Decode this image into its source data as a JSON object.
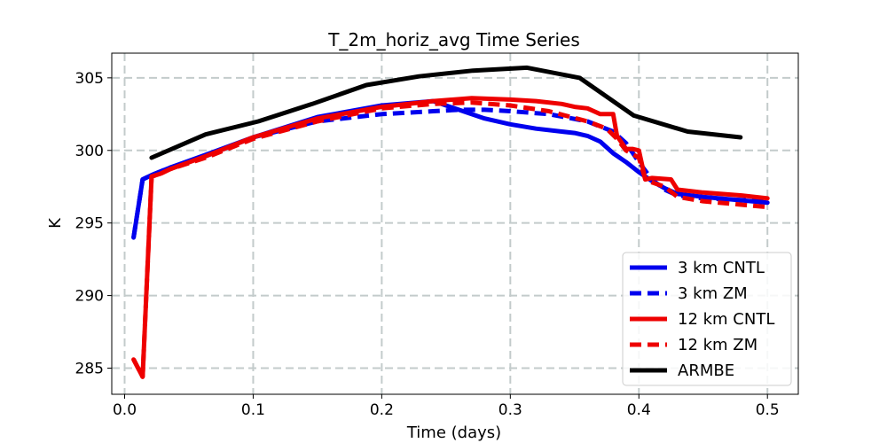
{
  "chart_data": {
    "type": "line",
    "title": "T_2m_horiz_avg Time Series",
    "xlabel": "Time (days)",
    "ylabel": "K",
    "xlim": [
      -0.01,
      0.524
    ],
    "ylim": [
      283.2,
      306.7
    ],
    "xticks": [
      0.0,
      0.1,
      0.2,
      0.3,
      0.4,
      0.5
    ],
    "xtick_labels": [
      "0.0",
      "0.1",
      "0.2",
      "0.3",
      "0.4",
      "0.5"
    ],
    "yticks": [
      285,
      290,
      295,
      300,
      305
    ],
    "ytick_labels": [
      "285",
      "290",
      "295",
      "300",
      "305"
    ],
    "grid": true,
    "legend_position": "lower-right",
    "series": [
      {
        "name": "3 km CNTL",
        "color": "#0000ee",
        "style": "solid",
        "x": [
          0.007,
          0.014,
          0.021,
          0.035,
          0.063,
          0.1,
          0.15,
          0.2,
          0.24,
          0.26,
          0.28,
          0.3,
          0.32,
          0.34,
          0.35,
          0.36,
          0.37,
          0.38,
          0.39,
          0.4,
          0.41,
          0.42,
          0.43,
          0.45,
          0.5
        ],
        "y": [
          294.0,
          298.0,
          298.3,
          298.8,
          299.7,
          300.9,
          302.3,
          303.1,
          303.4,
          302.8,
          302.2,
          301.8,
          301.5,
          301.3,
          301.2,
          301.0,
          300.6,
          299.8,
          299.2,
          298.5,
          297.9,
          297.4,
          297.0,
          296.8,
          296.4
        ]
      },
      {
        "name": "3 km ZM",
        "color": "#0000ee",
        "style": "dashed",
        "x": [
          0.007,
          0.014,
          0.021,
          0.035,
          0.063,
          0.1,
          0.15,
          0.2,
          0.24,
          0.26,
          0.28,
          0.3,
          0.33,
          0.36,
          0.38,
          0.39,
          0.4,
          0.41,
          0.42,
          0.43,
          0.45,
          0.5
        ],
        "y": [
          294.0,
          298.0,
          298.3,
          298.8,
          299.6,
          300.9,
          302.0,
          302.5,
          302.7,
          302.8,
          302.8,
          302.7,
          302.5,
          302.0,
          301.3,
          300.5,
          299.2,
          298.0,
          297.3,
          296.9,
          296.7,
          296.5
        ]
      },
      {
        "name": "12 km CNTL",
        "color": "#ee0000",
        "style": "solid",
        "x": [
          0.007,
          0.014,
          0.021,
          0.028,
          0.035,
          0.063,
          0.1,
          0.15,
          0.2,
          0.24,
          0.27,
          0.3,
          0.32,
          0.34,
          0.35,
          0.36,
          0.37,
          0.38,
          0.383,
          0.39,
          0.395,
          0.4,
          0.405,
          0.41,
          0.425,
          0.43,
          0.45,
          0.48,
          0.5
        ],
        "y": [
          285.6,
          284.4,
          298.2,
          298.4,
          298.7,
          299.6,
          300.9,
          302.2,
          303.0,
          303.4,
          303.6,
          303.5,
          303.4,
          303.2,
          303.0,
          302.9,
          302.5,
          302.5,
          301.0,
          300.1,
          300.1,
          300.0,
          298.0,
          298.1,
          298.0,
          297.3,
          297.1,
          296.9,
          296.7
        ]
      },
      {
        "name": "12 km ZM",
        "color": "#ee0000",
        "style": "dashed",
        "x": [
          0.007,
          0.014,
          0.021,
          0.028,
          0.035,
          0.063,
          0.1,
          0.15,
          0.2,
          0.24,
          0.27,
          0.3,
          0.33,
          0.36,
          0.375,
          0.383,
          0.39,
          0.4,
          0.405,
          0.41,
          0.42,
          0.43,
          0.45,
          0.5
        ],
        "y": [
          285.6,
          284.4,
          298.2,
          298.4,
          298.7,
          299.5,
          300.8,
          302.0,
          302.9,
          303.2,
          303.3,
          303.1,
          302.7,
          302.0,
          301.5,
          300.8,
          300.0,
          299.5,
          298.0,
          297.8,
          297.5,
          296.8,
          296.5,
          296.1
        ]
      },
      {
        "name": "ARMBE",
        "color": "#000000",
        "style": "solid",
        "x": [
          0.021,
          0.063,
          0.104,
          0.146,
          0.188,
          0.229,
          0.271,
          0.313,
          0.354,
          0.396,
          0.438,
          0.479
        ],
        "y": [
          299.5,
          301.1,
          302.0,
          303.2,
          304.5,
          305.1,
          305.5,
          305.7,
          305.0,
          302.4,
          301.3,
          300.9
        ]
      }
    ]
  }
}
